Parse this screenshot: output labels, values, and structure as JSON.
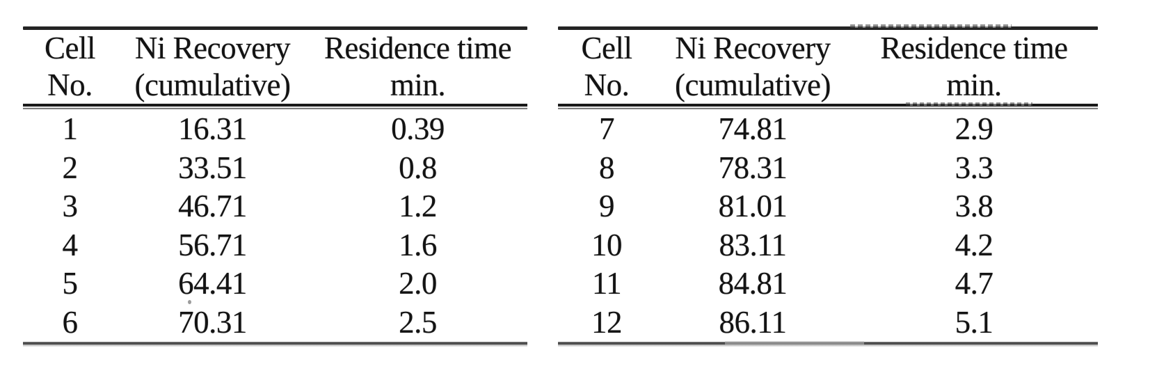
{
  "document": {
    "background_color": "#ffffff",
    "text_color": "#131313",
    "rule_color_dark": "#242424",
    "rule_color_gray": "#8c8c8c"
  },
  "tables": [
    {
      "position": "left",
      "headers": [
        {
          "line1": "Cell",
          "line2": "No."
        },
        {
          "line1": "Ni Recovery",
          "line2": "(cumulative)"
        },
        {
          "line1": "Residence time",
          "line2": "min."
        }
      ],
      "rows": [
        {
          "cell_no": "1",
          "ni_recovery_cumulative": "16.31",
          "residence_time_min": "0.39"
        },
        {
          "cell_no": "2",
          "ni_recovery_cumulative": "33.51",
          "residence_time_min": "0.8"
        },
        {
          "cell_no": "3",
          "ni_recovery_cumulative": "46.71",
          "residence_time_min": "1.2"
        },
        {
          "cell_no": "4",
          "ni_recovery_cumulative": "56.71",
          "residence_time_min": "1.6"
        },
        {
          "cell_no": "5",
          "ni_recovery_cumulative": "64.41",
          "residence_time_min": "2.0"
        },
        {
          "cell_no": "6",
          "ni_recovery_cumulative": "70.31",
          "residence_time_min": "2.5"
        }
      ]
    },
    {
      "position": "right",
      "headers": [
        {
          "line1": "Cell",
          "line2": "No."
        },
        {
          "line1": "Ni Recovery",
          "line2": "(cumulative)"
        },
        {
          "line1": "Residence time",
          "line2": "min."
        }
      ],
      "rows": [
        {
          "cell_no": "7",
          "ni_recovery_cumulative": "74.81",
          "residence_time_min": "2.9"
        },
        {
          "cell_no": "8",
          "ni_recovery_cumulative": "78.31",
          "residence_time_min": "3.3"
        },
        {
          "cell_no": "9",
          "ni_recovery_cumulative": "81.01",
          "residence_time_min": "3.8"
        },
        {
          "cell_no": "10",
          "ni_recovery_cumulative": "83.11",
          "residence_time_min": "4.2"
        },
        {
          "cell_no": "11",
          "ni_recovery_cumulative": "84.81",
          "residence_time_min": "4.7"
        },
        {
          "cell_no": "12",
          "ni_recovery_cumulative": "86.11",
          "residence_time_min": "5.1"
        }
      ]
    }
  ]
}
